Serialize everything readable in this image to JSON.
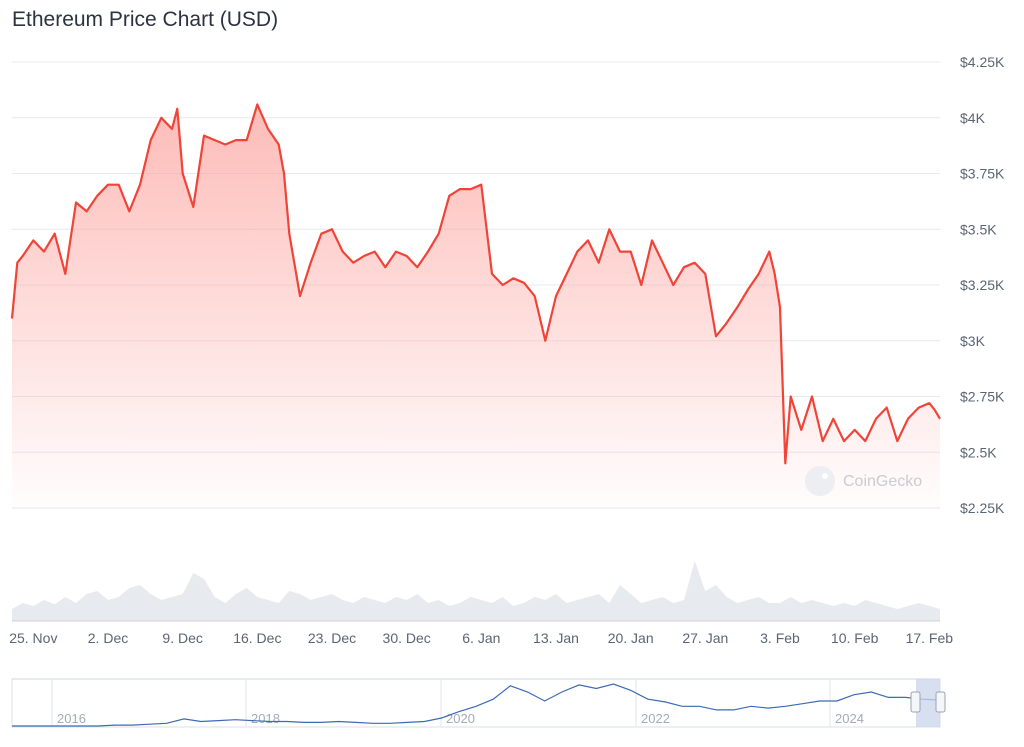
{
  "header": {
    "title": "Ethereum Price Chart (USD)"
  },
  "watermark": {
    "text": "CoinGecko",
    "icon": "gecko-logo-icon"
  },
  "colors": {
    "line": "#f04438",
    "fill_top": "#fca5a0",
    "volume": "#e7eaee",
    "navigator_line": "#3e6ab5",
    "navigator_mask": "#c9d5ec"
  },
  "chart_data": {
    "type": "area",
    "title": "Ethereum Price Chart (USD)",
    "xlabel": "",
    "ylabel": "",
    "ylim": [
      2250,
      4250
    ],
    "y_ticks": [
      "$4.25K",
      "$4K",
      "$3.75K",
      "$3.5K",
      "$3.25K",
      "$3K",
      "$2.75K",
      "$2.5K",
      "$2.25K"
    ],
    "y_tick_values": [
      4250,
      4000,
      3750,
      3500,
      3250,
      3000,
      2750,
      2500,
      2250
    ],
    "x_ticks": [
      "25. Nov",
      "2. Dec",
      "9. Dec",
      "16. Dec",
      "23. Dec",
      "30. Dec",
      "6. Jan",
      "13. Jan",
      "20. Jan",
      "27. Jan",
      "3. Feb",
      "10. Feb",
      "17. Feb"
    ],
    "xlim": [
      0,
      87
    ],
    "x_tick_days": [
      2,
      9,
      16,
      23,
      30,
      37,
      44,
      51,
      58,
      65,
      72,
      79,
      86
    ],
    "series": [
      {
        "x": [
          0,
          0.5,
          1,
          2,
          3,
          4,
          5,
          6,
          7,
          8,
          9,
          10,
          11,
          12,
          13,
          14,
          15,
          15.5,
          16,
          17,
          18,
          19,
          20,
          21,
          22,
          23,
          24,
          25,
          25.5,
          26,
          27,
          28,
          29,
          30,
          31,
          32,
          33,
          34,
          35,
          36,
          37,
          38,
          39,
          40,
          41,
          42,
          43,
          44,
          45,
          46,
          47,
          48,
          49,
          50,
          51,
          52,
          53,
          54,
          55,
          56,
          57,
          58,
          59,
          60,
          61,
          62,
          63,
          64,
          65,
          66,
          67,
          68,
          69,
          70,
          71,
          71.5,
          72,
          72.5,
          73,
          74,
          75,
          76,
          77,
          78,
          79,
          80,
          81,
          82,
          83,
          84,
          85,
          86,
          86.5,
          87
        ],
        "y": [
          3100,
          3350,
          3380,
          3450,
          3400,
          3480,
          3300,
          3620,
          3580,
          3650,
          3700,
          3700,
          3580,
          3700,
          3900,
          4000,
          3950,
          4040,
          3750,
          3600,
          3920,
          3900,
          3880,
          3900,
          3900,
          4060,
          3950,
          3880,
          3750,
          3480,
          3200,
          3350,
          3480,
          3500,
          3400,
          3350,
          3380,
          3400,
          3330,
          3400,
          3380,
          3330,
          3400,
          3480,
          3650,
          3680,
          3680,
          3700,
          3300,
          3250,
          3280,
          3260,
          3200,
          3000,
          3200,
          3300,
          3400,
          3450,
          3350,
          3500,
          3400,
          3400,
          3250,
          3450,
          3350,
          3250,
          3330,
          3350,
          3300,
          3020,
          3080,
          3150,
          3230,
          3300,
          3400,
          3300,
          3150,
          2450,
          2750,
          2600,
          2750,
          2550,
          2650,
          2550,
          2600,
          2550,
          2650,
          2700,
          2550,
          2650,
          2700,
          2720,
          2690,
          2650
        ]
      }
    ],
    "volume_series": [
      20,
      30,
      25,
      35,
      28,
      40,
      30,
      45,
      50,
      35,
      40,
      55,
      60,
      45,
      35,
      40,
      45,
      80,
      70,
      40,
      30,
      45,
      55,
      40,
      35,
      30,
      50,
      45,
      35,
      40,
      45,
      35,
      30,
      40,
      35,
      30,
      40,
      35,
      45,
      30,
      35,
      25,
      30,
      40,
      35,
      30,
      40,
      25,
      30,
      40,
      35,
      45,
      30,
      35,
      40,
      45,
      30,
      60,
      45,
      30,
      35,
      40,
      30,
      35,
      100,
      50,
      60,
      40,
      30,
      35,
      40,
      30,
      30,
      40,
      30,
      35,
      30,
      25,
      30,
      25,
      35,
      30,
      25,
      20,
      25,
      30,
      25,
      20
    ]
  },
  "navigator": {
    "labels": [
      "2016",
      "2018",
      "2020",
      "2022",
      "2024"
    ],
    "series": [
      0,
      0,
      0,
      0,
      0,
      0,
      1,
      1,
      2,
      3,
      8,
      5,
      6,
      7,
      6,
      5,
      5,
      4,
      4,
      5,
      4,
      3,
      3,
      4,
      5,
      9,
      16,
      22,
      30,
      45,
      38,
      28,
      38,
      46,
      42,
      47,
      40,
      30,
      27,
      22,
      22,
      18,
      18,
      22,
      20,
      22,
      25,
      28,
      28,
      35,
      38,
      32,
      32,
      30,
      29
    ]
  }
}
